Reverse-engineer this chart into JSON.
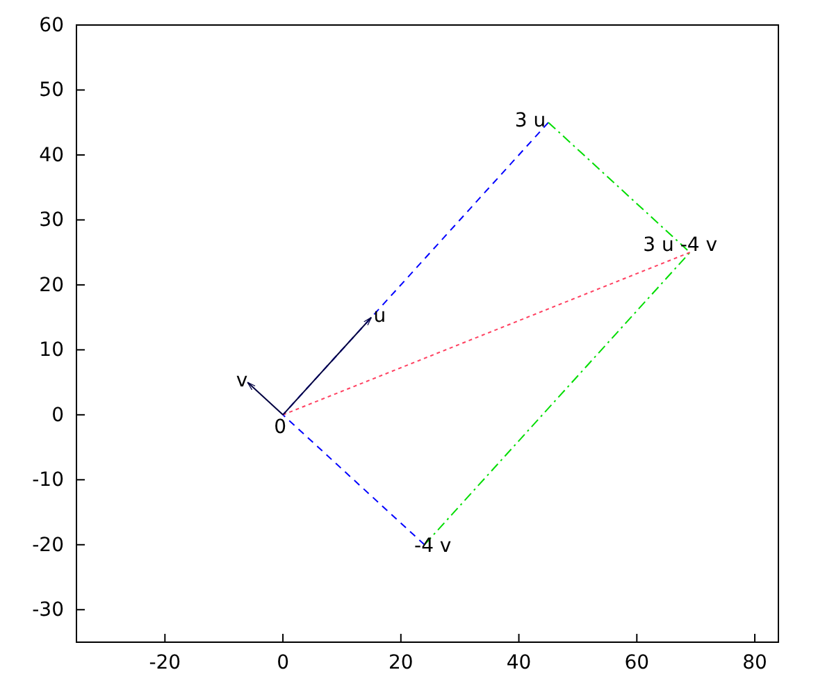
{
  "chart_data": {
    "type": "line",
    "xlim": [
      -35,
      84
    ],
    "ylim": [
      -35,
      60
    ],
    "xticks": [
      -20,
      0,
      20,
      40,
      60,
      80
    ],
    "yticks": [
      -30,
      -20,
      -10,
      0,
      10,
      20,
      30,
      40,
      50,
      60
    ],
    "grid": false,
    "marker": "none",
    "series": [
      {
        "color": "#0000ff",
        "line_style": "dashed",
        "x": [
          45,
          0,
          24
        ],
        "values": [
          45,
          0,
          -20
        ]
      },
      {
        "color": "#00dd00",
        "line_style": "dashdot",
        "x": [
          45,
          69,
          24
        ],
        "values": [
          45,
          25,
          -20
        ]
      },
      {
        "color": "#ff4060",
        "line_style": "dotted",
        "x": [
          0,
          69
        ],
        "values": [
          0,
          25
        ]
      },
      {
        "color": "#000040",
        "line_style": "solid",
        "x": [
          0,
          15
        ],
        "values": [
          0,
          15
        ]
      },
      {
        "color": "#000040",
        "line_style": "solid",
        "x": [
          0,
          -6
        ],
        "values": [
          0,
          5
        ]
      }
    ],
    "annotations": [
      {
        "text": "0",
        "x": 0,
        "y": 0
      },
      {
        "text": "u",
        "x": 15,
        "y": 15
      },
      {
        "text": "v",
        "x": -6,
        "y": 5
      },
      {
        "text": "3 u",
        "x": 45,
        "y": 45
      },
      {
        "text": "-4 v",
        "x": 24,
        "y": -20
      },
      {
        "text": "3 u -4 v",
        "x": 69,
        "y": 25
      }
    ]
  }
}
